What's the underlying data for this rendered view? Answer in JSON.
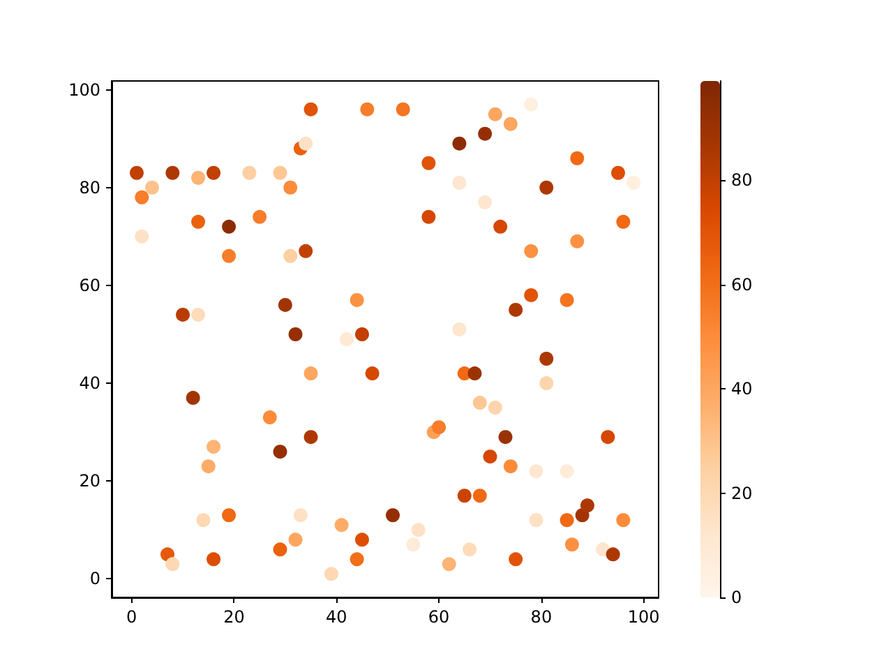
{
  "chart_data": {
    "type": "scatter",
    "marker": "circle",
    "grid": false,
    "xlim": [
      -3.9,
      102.9
    ],
    "ylim": [
      -3.8,
      101.8
    ],
    "xticks": [
      0,
      20,
      40,
      60,
      80,
      100
    ],
    "yticks": [
      0,
      20,
      40,
      60,
      80,
      100
    ],
    "clim": [
      0,
      99
    ],
    "cticks": [
      0,
      20,
      40,
      60,
      80
    ],
    "x": [
      1,
      2,
      2,
      4,
      8,
      13,
      13,
      16,
      19,
      19,
      23,
      25,
      29,
      31,
      33,
      34,
      35,
      31,
      34,
      10,
      13,
      30,
      32,
      35,
      12,
      16,
      15,
      27,
      29,
      35,
      14,
      19,
      7,
      8,
      16,
      29,
      32,
      33,
      39,
      41,
      44,
      45,
      44,
      45,
      42,
      47,
      46,
      53,
      58,
      58,
      64,
      69,
      71,
      74,
      78,
      64,
      69,
      72,
      81,
      87,
      95,
      98,
      78,
      87,
      75,
      78,
      85,
      96,
      64,
      65,
      67,
      81,
      81,
      68,
      71,
      59,
      60,
      73,
      70,
      74,
      79,
      85,
      93,
      65,
      68,
      51,
      56,
      55,
      66,
      62,
      75,
      79,
      85,
      88,
      89,
      86,
      92,
      94,
      96
    ],
    "values": [
      83,
      78,
      70,
      80,
      83,
      82,
      73,
      83,
      72,
      66,
      83,
      74,
      83,
      80,
      88,
      89,
      96,
      66,
      67,
      54,
      54,
      56,
      50,
      42,
      37,
      27,
      23,
      33,
      26,
      29,
      12,
      13,
      5,
      3,
      4,
      6,
      8,
      13,
      1,
      11,
      4,
      8,
      57,
      50,
      49,
      42,
      96,
      96,
      85,
      74,
      89,
      91,
      95,
      93,
      97,
      81,
      77,
      72,
      80,
      86,
      83,
      81,
      67,
      69,
      55,
      58,
      57,
      73,
      51,
      42,
      42,
      45,
      40,
      36,
      35,
      30,
      31,
      29,
      25,
      23,
      22,
      22,
      29,
      17,
      17,
      13,
      10,
      7,
      6,
      3,
      4,
      12,
      12,
      13,
      15,
      7,
      6,
      5,
      12
    ],
    "cvalues": [
      80,
      55,
      15,
      30,
      85,
      35,
      65,
      80,
      95,
      55,
      25,
      55,
      28,
      50,
      65,
      15,
      70,
      25,
      80,
      82,
      18,
      88,
      92,
      40,
      88,
      35,
      38,
      50,
      92,
      85,
      20,
      62,
      68,
      20,
      72,
      65,
      40,
      15,
      20,
      38,
      60,
      72,
      48,
      80,
      10,
      75,
      55,
      58,
      70,
      75,
      95,
      92,
      40,
      40,
      5,
      12,
      12,
      75,
      85,
      62,
      72,
      5,
      48,
      48,
      85,
      70,
      58,
      62,
      12,
      62,
      90,
      85,
      22,
      28,
      22,
      42,
      55,
      90,
      75,
      50,
      12,
      8,
      75,
      78,
      62,
      92,
      15,
      8,
      18,
      35,
      70,
      15,
      62,
      88,
      85,
      48,
      12,
      85,
      50
    ]
  }
}
